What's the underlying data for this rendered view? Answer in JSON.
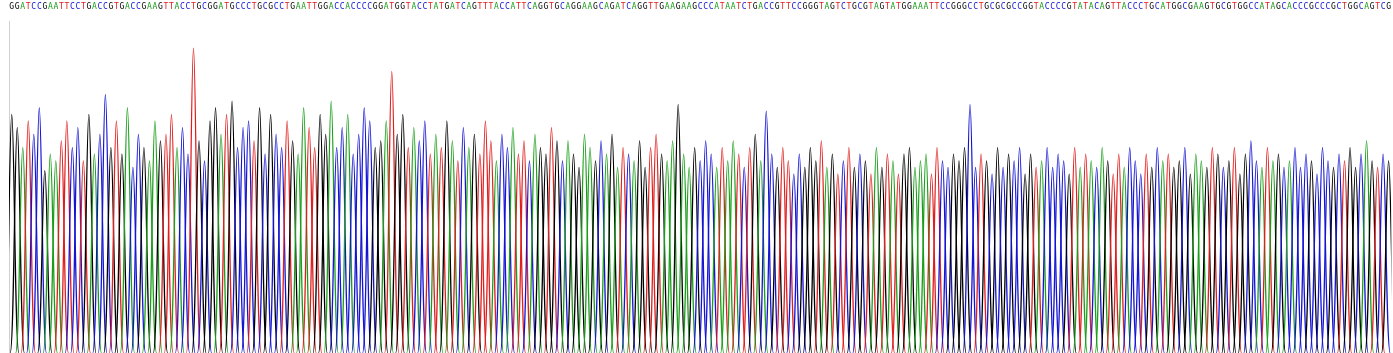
{
  "chart_data": {
    "type": "chromatogram",
    "categories": [
      "G",
      "G",
      "A",
      "T",
      "C",
      "C",
      "G",
      "A",
      "A",
      "T",
      "T",
      "C",
      "C",
      "T",
      "G",
      "A",
      "C",
      "C",
      "G",
      "T",
      "G",
      "A",
      "C",
      "C",
      "G",
      "A",
      "A",
      "G",
      "T",
      "T",
      "A",
      "C",
      "C",
      "T",
      "G",
      "C",
      "G",
      "G",
      "A",
      "T",
      "G",
      "C",
      "C",
      "C",
      "T",
      "G",
      "C",
      "G",
      "C",
      "C",
      "T",
      "G",
      "A",
      "A",
      "T",
      "T",
      "G",
      "G",
      "A",
      "C",
      "C",
      "A",
      "C",
      "C",
      "C",
      "C",
      "G",
      "G",
      "A",
      "T",
      "G",
      "G",
      "T",
      "A",
      "C",
      "C",
      "T",
      "A",
      "T",
      "G",
      "A",
      "T",
      "C",
      "A",
      "G",
      "T",
      "T",
      "T",
      "A",
      "C",
      "C",
      "A",
      "T",
      "T",
      "C",
      "A",
      "G",
      "G",
      "T",
      "G",
      "C",
      "A",
      "G",
      "G",
      "A",
      "A",
      "G",
      "C",
      "A",
      "G",
      "A",
      "T",
      "C",
      "A",
      "G",
      "G",
      "T",
      "T",
      "G",
      "A",
      "A",
      "G",
      "A",
      "A",
      "G",
      "C",
      "C",
      "C",
      "A",
      "T",
      "A",
      "A",
      "T",
      "C",
      "T",
      "G",
      "A",
      "C",
      "C",
      "G",
      "T",
      "T",
      "C",
      "C",
      "G",
      "G",
      "G",
      "T",
      "A",
      "G",
      "T",
      "C",
      "T",
      "G",
      "C",
      "G",
      "T",
      "A",
      "G",
      "T",
      "A",
      "T",
      "G",
      "G",
      "A",
      "A",
      "A",
      "T",
      "T",
      "C",
      "C",
      "G",
      "G",
      "G",
      "C",
      "C",
      "T",
      "G",
      "C",
      "G",
      "C",
      "G",
      "C",
      "C",
      "G",
      "G",
      "T",
      "A",
      "C",
      "C",
      "C",
      "C",
      "G",
      "T",
      "A",
      "T",
      "A",
      "C",
      "A",
      "G",
      "T",
      "T",
      "A",
      "C",
      "C",
      "C",
      "T",
      "G",
      "C",
      "A",
      "T",
      "G",
      "G",
      "C",
      "G",
      "A",
      "A",
      "G",
      "T",
      "G",
      "C",
      "G",
      "T",
      "G",
      "G",
      "C",
      "C",
      "A",
      "T",
      "A",
      "G",
      "C",
      "A",
      "C",
      "C",
      "C",
      "G",
      "C",
      "C",
      "C",
      "G",
      "C",
      "T",
      "G",
      "G",
      "C",
      "A",
      "G",
      "T",
      "C",
      "G"
    ],
    "values": [
      72,
      68,
      62,
      70,
      66,
      74,
      55,
      60,
      58,
      64,
      70,
      62,
      68,
      58,
      72,
      60,
      66,
      78,
      62,
      70,
      60,
      74,
      56,
      66,
      62,
      58,
      70,
      64,
      66,
      72,
      62,
      68,
      60,
      92,
      64,
      58,
      70,
      74,
      66,
      72,
      76,
      62,
      68,
      70,
      64,
      74,
      60,
      72,
      66,
      62,
      70,
      64,
      60,
      74,
      68,
      62,
      72,
      66,
      76,
      62,
      68,
      72,
      60,
      66,
      74,
      70,
      62,
      64,
      70,
      85,
      66,
      72,
      62,
      68,
      64,
      70,
      60,
      66,
      62,
      70,
      64,
      58,
      68,
      62,
      66,
      60,
      70,
      64,
      58,
      66,
      62,
      68,
      60,
      64,
      58,
      66,
      62,
      60,
      68,
      64,
      58,
      64,
      60,
      56,
      66,
      62,
      58,
      64,
      60,
      66,
      56,
      62,
      60,
      58,
      64,
      56,
      62,
      66,
      60,
      58,
      64,
      75,
      60,
      56,
      62,
      58,
      64,
      60,
      56,
      62,
      58,
      64,
      60,
      56,
      62,
      66,
      58,
      73,
      60,
      56,
      62,
      58,
      54,
      60,
      56,
      62,
      58,
      64,
      56,
      60,
      54,
      58,
      62,
      56,
      60,
      58,
      54,
      62,
      56,
      60,
      58,
      54,
      60,
      62,
      56,
      58,
      60,
      54,
      62,
      58,
      56,
      60,
      58,
      62,
      75,
      56,
      60,
      58,
      54,
      62,
      56,
      60,
      58,
      62,
      54,
      60,
      56,
      58,
      62,
      56,
      60,
      58,
      54,
      62,
      56,
      60,
      58,
      56,
      62,
      58,
      54,
      60,
      56,
      62,
      58,
      54,
      60,
      56,
      62,
      58,
      60,
      56,
      58,
      62,
      54,
      60,
      58,
      56,
      62,
      60,
      56,
      58,
      62,
      54,
      60,
      64,
      58,
      56,
      62,
      58,
      60,
      56,
      58,
      62,
      56,
      60,
      58,
      54,
      62,
      58,
      56,
      60,
      58,
      62,
      56,
      60,
      64,
      58,
      56,
      60,
      58
    ],
    "colors": [
      "#000000",
      "#000000",
      "#1a9e1a",
      "#e01e1e",
      "#1414d2",
      "#1414d2",
      "#000000",
      "#1a9e1a",
      "#1a9e1a",
      "#e01e1e",
      "#e01e1e",
      "#1414d2",
      "#1414d2",
      "#e01e1e",
      "#000000",
      "#1a9e1a",
      "#1414d2",
      "#1414d2",
      "#000000",
      "#e01e1e",
      "#000000",
      "#1a9e1a",
      "#1414d2",
      "#1414d2",
      "#000000",
      "#1a9e1a",
      "#1a9e1a",
      "#000000",
      "#e01e1e",
      "#e01e1e",
      "#1a9e1a",
      "#1414d2",
      "#1414d2",
      "#e01e1e",
      "#000000",
      "#1414d2",
      "#000000",
      "#000000",
      "#1a9e1a",
      "#e01e1e",
      "#000000",
      "#1414d2",
      "#1414d2",
      "#1414d2",
      "#e01e1e",
      "#000000",
      "#1414d2",
      "#000000",
      "#1414d2",
      "#1414d2",
      "#e01e1e",
      "#000000",
      "#1a9e1a",
      "#1a9e1a",
      "#e01e1e",
      "#e01e1e",
      "#000000",
      "#000000",
      "#1a9e1a",
      "#1414d2",
      "#1414d2",
      "#1a9e1a",
      "#1414d2",
      "#1414d2",
      "#1414d2",
      "#1414d2",
      "#000000",
      "#000000",
      "#1a9e1a",
      "#e01e1e",
      "#000000",
      "#000000",
      "#e01e1e",
      "#1a9e1a",
      "#1414d2",
      "#1414d2",
      "#e01e1e",
      "#1a9e1a",
      "#e01e1e",
      "#000000",
      "#1a9e1a",
      "#e01e1e",
      "#1414d2",
      "#1a9e1a",
      "#000000",
      "#e01e1e",
      "#e01e1e",
      "#e01e1e",
      "#1a9e1a",
      "#1414d2",
      "#1414d2",
      "#1a9e1a",
      "#e01e1e",
      "#e01e1e",
      "#1414d2",
      "#1a9e1a",
      "#000000",
      "#000000",
      "#e01e1e",
      "#000000",
      "#1414d2",
      "#1a9e1a",
      "#000000",
      "#000000",
      "#1a9e1a",
      "#1a9e1a",
      "#000000",
      "#1414d2",
      "#1a9e1a",
      "#000000",
      "#1a9e1a",
      "#e01e1e",
      "#1414d2",
      "#1a9e1a",
      "#000000",
      "#000000",
      "#e01e1e",
      "#e01e1e",
      "#000000",
      "#1a9e1a",
      "#1a9e1a",
      "#000000",
      "#1a9e1a",
      "#1a9e1a",
      "#000000",
      "#1414d2",
      "#1414d2",
      "#1414d2",
      "#1a9e1a",
      "#e01e1e",
      "#1a9e1a",
      "#1a9e1a",
      "#e01e1e",
      "#1414d2",
      "#e01e1e",
      "#000000",
      "#1a9e1a",
      "#1414d2",
      "#1414d2",
      "#000000",
      "#e01e1e",
      "#e01e1e",
      "#1414d2",
      "#1414d2",
      "#000000",
      "#000000",
      "#000000",
      "#e01e1e",
      "#1a9e1a",
      "#000000",
      "#e01e1e",
      "#1414d2",
      "#e01e1e",
      "#000000",
      "#1414d2",
      "#000000",
      "#e01e1e",
      "#1a9e1a",
      "#000000",
      "#e01e1e",
      "#1a9e1a",
      "#e01e1e",
      "#000000",
      "#000000",
      "#1a9e1a",
      "#1a9e1a",
      "#1a9e1a",
      "#e01e1e",
      "#e01e1e",
      "#1414d2",
      "#1414d2",
      "#000000",
      "#000000",
      "#000000",
      "#1414d2",
      "#1414d2",
      "#e01e1e",
      "#000000",
      "#1414d2",
      "#000000",
      "#1414d2",
      "#000000",
      "#1414d2",
      "#1414d2",
      "#000000",
      "#000000",
      "#e01e1e",
      "#1a9e1a",
      "#1414d2",
      "#1414d2",
      "#1414d2",
      "#1414d2",
      "#000000",
      "#e01e1e",
      "#1a9e1a",
      "#e01e1e",
      "#1a9e1a",
      "#1414d2",
      "#1a9e1a",
      "#000000",
      "#e01e1e",
      "#e01e1e",
      "#1a9e1a",
      "#1414d2",
      "#1414d2",
      "#1414d2",
      "#e01e1e",
      "#000000",
      "#1414d2",
      "#1a9e1a",
      "#e01e1e",
      "#000000",
      "#000000",
      "#1414d2",
      "#000000",
      "#1a9e1a",
      "#1a9e1a",
      "#000000",
      "#e01e1e",
      "#000000",
      "#1414d2",
      "#000000",
      "#e01e1e",
      "#000000",
      "#000000",
      "#1414d2",
      "#1414d2",
      "#1a9e1a",
      "#e01e1e",
      "#1a9e1a",
      "#000000",
      "#1414d2",
      "#1a9e1a",
      "#1414d2",
      "#1414d2",
      "#1414d2",
      "#000000",
      "#1414d2",
      "#1414d2",
      "#1414d2",
      "#000000",
      "#1414d2",
      "#e01e1e",
      "#000000",
      "#000000",
      "#1414d2",
      "#1a9e1a",
      "#000000",
      "#e01e1e",
      "#1414d2",
      "#000000"
    ],
    "ylim": [
      0,
      100
    ],
    "grid": false,
    "tick_labels": "x"
  }
}
